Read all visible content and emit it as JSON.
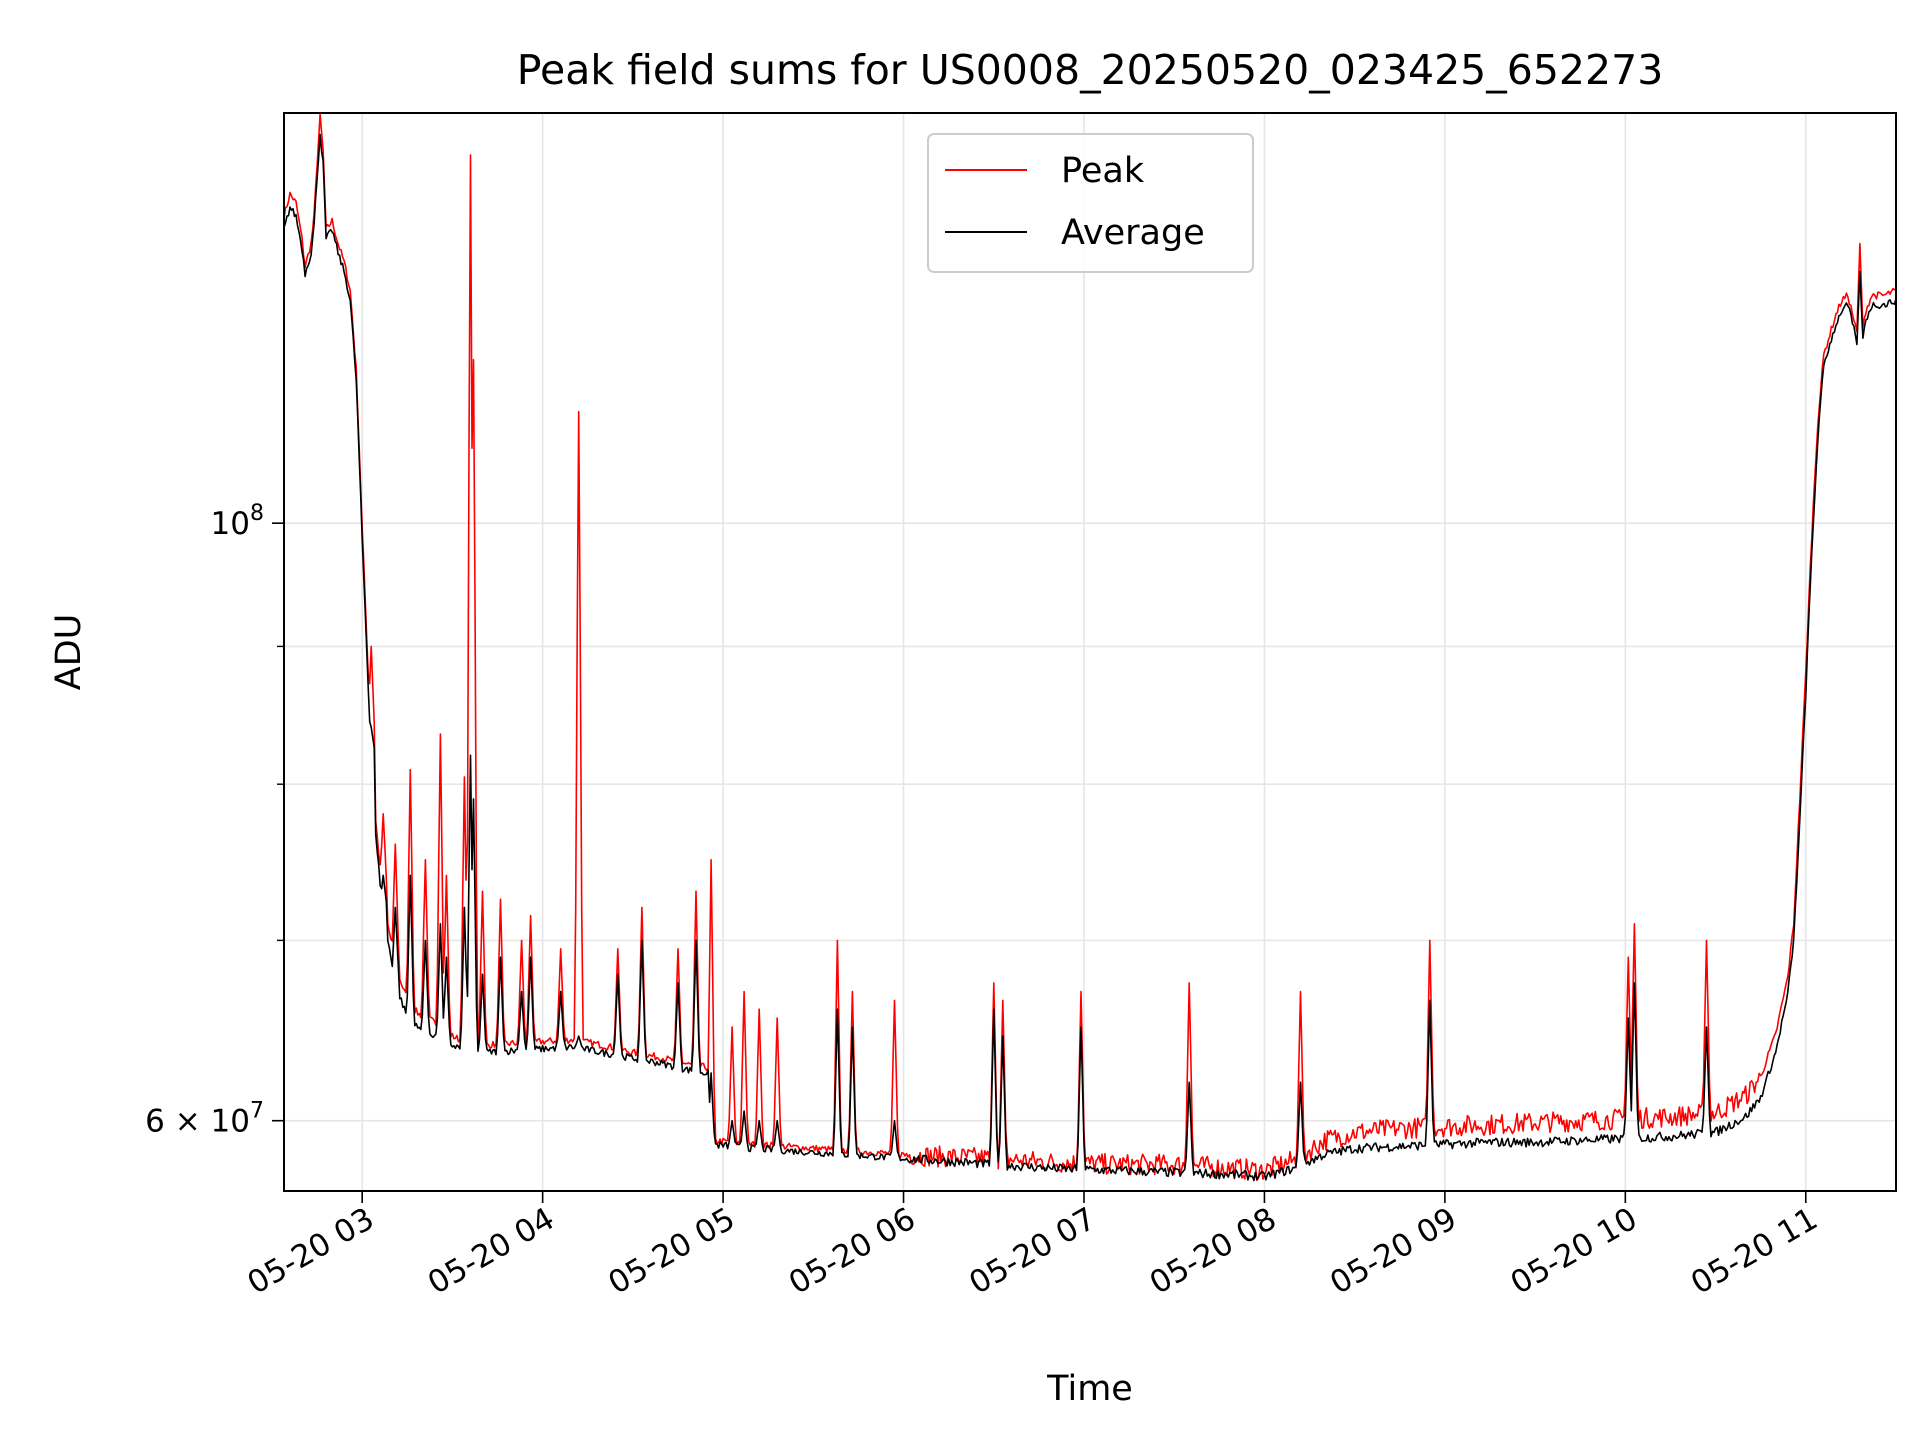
{
  "chart_data": {
    "type": "line",
    "title": "Peak field sums for US0008_20250520_023425_652273",
    "xlabel": "Time",
    "ylabel": "ADU",
    "y_scale": "log",
    "ylim": [
      56500000,
      142000000
    ],
    "xlim": [
      "05-20 02:34",
      "05-20 11:30"
    ],
    "x_ticks": [
      "05-20 03",
      "05-20 04",
      "05-20 05",
      "05-20 06",
      "05-20 07",
      "05-20 08",
      "05-20 09",
      "05-20 10",
      "05-20 11"
    ],
    "y_ticks": [
      {
        "value": 100000000,
        "base": "10",
        "exp": "8"
      },
      {
        "value": 60000000,
        "base": "6 × 10",
        "exp": "7"
      }
    ],
    "grid": true,
    "legend_position": "top-center",
    "colors": {
      "peak": "#ff0000",
      "average": "#000000",
      "grid": "#e6e6e6"
    },
    "series": [
      {
        "name": "Peak",
        "values": [
          [
            "05-20 02:34",
            130000000
          ],
          [
            "05-20 02:36",
            132500000
          ],
          [
            "05-20 02:38",
            131500000
          ],
          [
            "05-20 02:40",
            127500000
          ],
          [
            "05-20 02:41",
            124500000
          ],
          [
            "05-20 02:43",
            127000000
          ],
          [
            "05-20 02:44",
            130000000
          ],
          [
            "05-20 02:45",
            136000000
          ],
          [
            "05-20 02:46",
            141500000
          ],
          [
            "05-20 02:47",
            137500000
          ],
          [
            "05-20 02:48",
            128500000
          ],
          [
            "05-20 02:50",
            129500000
          ],
          [
            "05-20 02:52",
            127000000
          ],
          [
            "05-20 02:54",
            125000000
          ],
          [
            "05-20 02:56",
            122000000
          ],
          [
            "05-20 02:58",
            114000000
          ],
          [
            "05-20 03:00",
            99500000
          ],
          [
            "05-20 03:02",
            88000000
          ],
          [
            "05-20 03:04",
            78500000
          ],
          [
            "05-20 03:06",
            74500000
          ],
          [
            "05-20 03:08",
            71500000
          ],
          [
            "05-20 03:10",
            69500000
          ],
          [
            "05-20 03:12",
            68000000
          ],
          [
            "05-20 03:14",
            67000000
          ],
          [
            "05-20 03:16",
            66200000
          ],
          [
            "05-20 03:19",
            65700000
          ],
          [
            "05-20 03:22",
            65500000
          ],
          [
            "05-20 03:26",
            65000000
          ],
          [
            "05-20 03:30",
            64500000
          ],
          [
            "05-20 03:35",
            64100000
          ],
          [
            "05-20 03:40",
            64000000
          ],
          [
            "05-20 03:50",
            64100000
          ],
          [
            "05-20 04:00",
            64200000
          ],
          [
            "05-20 04:10",
            64300000
          ],
          [
            "05-20 04:20",
            64000000
          ],
          [
            "05-20 04:30",
            63600000
          ],
          [
            "05-20 04:40",
            63300000
          ],
          [
            "05-20 04:50",
            62900000
          ],
          [
            "05-20 04:55",
            62800000
          ],
          [
            "05-20 04:56",
            59000000
          ],
          [
            "05-20 05:10",
            58800000
          ],
          [
            "05-20 05:30",
            58600000
          ],
          [
            "05-20 05:50",
            58400000
          ],
          [
            "05-20 06:10",
            58200000
          ],
          [
            "05-20 06:30",
            58100000
          ],
          [
            "05-20 06:50",
            57900000
          ],
          [
            "05-20 07:10",
            57800000
          ],
          [
            "05-20 07:30",
            57800000
          ],
          [
            "05-20 07:50",
            57600000
          ],
          [
            "05-20 08:00",
            57500000
          ],
          [
            "05-20 08:10",
            58000000
          ],
          [
            "05-20 08:20",
            59000000
          ],
          [
            "05-20 08:30",
            59400000
          ],
          [
            "05-20 08:45",
            59600000
          ],
          [
            "05-20 09:00",
            59700000
          ],
          [
            "05-20 09:15",
            59800000
          ],
          [
            "05-20 09:30",
            59900000
          ],
          [
            "05-20 09:45",
            60000000
          ],
          [
            "05-20 10:00",
            60100000
          ],
          [
            "05-20 10:15",
            60200000
          ],
          [
            "05-20 10:30",
            60400000
          ],
          [
            "05-20 10:40",
            61300000
          ],
          [
            "05-20 10:45",
            62300000
          ],
          [
            "05-20 10:50",
            64600000
          ],
          [
            "05-20 10:54",
            67800000
          ],
          [
            "05-20 10:56",
            71000000
          ],
          [
            "05-20 10:58",
            79000000
          ],
          [
            "05-20 11:00",
            88000000
          ],
          [
            "05-20 11:02",
            99000000
          ],
          [
            "05-20 11:04",
            109000000
          ],
          [
            "05-20 11:06",
            115500000
          ],
          [
            "05-20 11:08",
            117500000
          ],
          [
            "05-20 11:10",
            119500000
          ],
          [
            "05-20 11:12",
            121000000
          ],
          [
            "05-20 11:14",
            121500000
          ],
          [
            "05-20 11:16",
            119000000
          ],
          [
            "05-20 11:18",
            116000000
          ],
          [
            "05-20 11:20",
            120000000
          ],
          [
            "05-20 11:22",
            121500000
          ],
          [
            "05-20 11:24",
            121500000
          ],
          [
            "05-20 11:26",
            121500000
          ],
          [
            "05-20 11:30",
            122000000
          ]
        ]
      },
      {
        "name": "Average",
        "values": [
          [
            "05-20 02:34",
            128500000
          ],
          [
            "05-20 02:36",
            131000000
          ],
          [
            "05-20 02:38",
            130000000
          ],
          [
            "05-20 02:40",
            126500000
          ],
          [
            "05-20 02:41",
            123800000
          ],
          [
            "05-20 02:43",
            126000000
          ],
          [
            "05-20 02:44",
            129000000
          ],
          [
            "05-20 02:45",
            134500000
          ],
          [
            "05-20 02:46",
            139500000
          ],
          [
            "05-20 02:47",
            136000000
          ],
          [
            "05-20 02:48",
            127500000
          ],
          [
            "05-20 02:50",
            128500000
          ],
          [
            "05-20 02:52",
            126000000
          ],
          [
            "05-20 02:54",
            124000000
          ],
          [
            "05-20 02:56",
            121000000
          ],
          [
            "05-20 02:58",
            113000000
          ],
          [
            "05-20 03:00",
            98500000
          ],
          [
            "05-20 03:02",
            87000000
          ],
          [
            "05-20 03:04",
            77500000
          ],
          [
            "05-20 03:06",
            73500000
          ],
          [
            "05-20 03:08",
            70500000
          ],
          [
            "05-20 03:10",
            68500000
          ],
          [
            "05-20 03:12",
            67000000
          ],
          [
            "05-20 03:14",
            66000000
          ],
          [
            "05-20 03:16",
            65300000
          ],
          [
            "05-20 03:19",
            64900000
          ],
          [
            "05-20 03:22",
            64700000
          ],
          [
            "05-20 03:26",
            64400000
          ],
          [
            "05-20 03:30",
            64000000
          ],
          [
            "05-20 03:35",
            63700000
          ],
          [
            "05-20 03:40",
            63600000
          ],
          [
            "05-20 03:50",
            63700000
          ],
          [
            "05-20 04:00",
            63800000
          ],
          [
            "05-20 04:10",
            63900000
          ],
          [
            "05-20 04:20",
            63600000
          ],
          [
            "05-20 04:30",
            63300000
          ],
          [
            "05-20 04:40",
            63000000
          ],
          [
            "05-20 04:50",
            62600000
          ],
          [
            "05-20 04:55",
            62500000
          ],
          [
            "05-20 04:56",
            58800000
          ],
          [
            "05-20 05:10",
            58600000
          ],
          [
            "05-20 05:30",
            58400000
          ],
          [
            "05-20 05:50",
            58200000
          ],
          [
            "05-20 06:10",
            58000000
          ],
          [
            "05-20 06:30",
            57800000
          ],
          [
            "05-20 06:50",
            57600000
          ],
          [
            "05-20 07:10",
            57500000
          ],
          [
            "05-20 07:30",
            57400000
          ],
          [
            "05-20 07:50",
            57300000
          ],
          [
            "05-20 08:00",
            57200000
          ],
          [
            "05-20 08:10",
            57600000
          ],
          [
            "05-20 08:20",
            58300000
          ],
          [
            "05-20 08:30",
            58600000
          ],
          [
            "05-20 08:45",
            58700000
          ],
          [
            "05-20 09:00",
            58800000
          ],
          [
            "05-20 09:15",
            58900000
          ],
          [
            "05-20 09:30",
            58900000
          ],
          [
            "05-20 09:45",
            59000000
          ],
          [
            "05-20 10:00",
            59100000
          ],
          [
            "05-20 10:15",
            59200000
          ],
          [
            "05-20 10:30",
            59400000
          ],
          [
            "05-20 10:40",
            60200000
          ],
          [
            "05-20 10:45",
            61200000
          ],
          [
            "05-20 10:50",
            63600000
          ],
          [
            "05-20 10:54",
            66800000
          ],
          [
            "05-20 10:56",
            70000000
          ],
          [
            "05-20 10:58",
            77500000
          ],
          [
            "05-20 11:00",
            86500000
          ],
          [
            "05-20 11:02",
            97500000
          ],
          [
            "05-20 11:04",
            107500000
          ],
          [
            "05-20 11:06",
            114500000
          ],
          [
            "05-20 11:08",
            116500000
          ],
          [
            "05-20 11:10",
            118500000
          ],
          [
            "05-20 11:12",
            120000000
          ],
          [
            "05-20 11:14",
            120500000
          ],
          [
            "05-20 11:16",
            118000000
          ],
          [
            "05-20 11:18",
            115000000
          ],
          [
            "05-20 11:20",
            119000000
          ],
          [
            "05-20 11:22",
            120500000
          ],
          [
            "05-20 11:24",
            120500000
          ],
          [
            "05-20 11:26",
            120500000
          ],
          [
            "05-20 11:30",
            121000000
          ]
        ]
      }
    ],
    "spikes": [
      {
        "time": "05-20 03:03",
        "peak": 90000000,
        "average": 84000000
      },
      {
        "time": "05-20 03:07",
        "peak": 78000000,
        "average": 74000000
      },
      {
        "time": "05-20 03:11",
        "peak": 76000000,
        "average": 72000000
      },
      {
        "time": "05-20 03:16",
        "peak": 81000000,
        "average": 74000000
      },
      {
        "time": "05-20 03:21",
        "peak": 75000000,
        "average": 70000000
      },
      {
        "time": "05-20 03:26",
        "peak": 83500000,
        "average": 71000000
      },
      {
        "time": "05-20 03:28",
        "peak": 74000000,
        "average": 69000000
      },
      {
        "time": "05-20 03:34",
        "peak": 80500000,
        "average": 72000000
      },
      {
        "time": "05-20 03:36",
        "peak": 137000000,
        "average": 82000000
      },
      {
        "time": "05-20 03:37",
        "peak": 115000000,
        "average": 79000000
      },
      {
        "time": "05-20 03:40",
        "peak": 73000000,
        "average": 68000000
      },
      {
        "time": "05-20 03:46",
        "peak": 72500000,
        "average": 69000000
      },
      {
        "time": "05-20 03:53",
        "peak": 70000000,
        "average": 67000000
      },
      {
        "time": "05-20 04:06",
        "peak": 69500000,
        "average": 67000000
      },
      {
        "time": "05-20 03:56",
        "peak": 71500000,
        "average": 69000000
      },
      {
        "time": "05-20 04:12",
        "peak": 110000000,
        "average": 64500000
      },
      {
        "time": "05-20 04:25",
        "peak": 69500000,
        "average": 68000000
      },
      {
        "time": "05-20 04:33",
        "peak": 72000000,
        "average": 70000000
      },
      {
        "time": "05-20 04:45",
        "peak": 69500000,
        "average": 67500000
      },
      {
        "time": "05-20 04:51",
        "peak": 73000000,
        "average": 70000000
      },
      {
        "time": "05-20 04:56",
        "peak": 75000000,
        "average": 62500000
      },
      {
        "time": "05-20 05:03",
        "peak": 65000000,
        "average": 60000000
      },
      {
        "time": "05-20 05:07",
        "peak": 67000000,
        "average": 60500000
      },
      {
        "time": "05-20 05:12",
        "peak": 66000000,
        "average": 60000000
      },
      {
        "time": "05-20 05:18",
        "peak": 65500000,
        "average": 60000000
      },
      {
        "time": "05-20 05:38",
        "peak": 70000000,
        "average": 66000000
      },
      {
        "time": "05-20 05:43",
        "peak": 67000000,
        "average": 65000000
      },
      {
        "time": "05-20 05:57",
        "peak": 66500000,
        "average": 60000000
      },
      {
        "time": "05-20 06:30",
        "peak": 67500000,
        "average": 66000000
      },
      {
        "time": "05-20 06:33",
        "peak": 66500000,
        "average": 64500000
      },
      {
        "time": "05-20 06:59",
        "peak": 67000000,
        "average": 65000000
      },
      {
        "time": "05-20 07:35",
        "peak": 67500000,
        "average": 62000000
      },
      {
        "time": "05-20 08:12",
        "peak": 67000000,
        "average": 62000000
      },
      {
        "time": "05-20 08:55",
        "peak": 70000000,
        "average": 66500000
      },
      {
        "time": "05-20 10:01",
        "peak": 69000000,
        "average": 65500000
      },
      {
        "time": "05-20 10:03",
        "peak": 71000000,
        "average": 67500000
      },
      {
        "time": "05-20 10:27",
        "peak": 70000000,
        "average": 65000000
      },
      {
        "time": "05-20 11:18",
        "peak": 127000000,
        "average": 124000000
      }
    ]
  },
  "legend": {
    "peak_label": "Peak",
    "average_label": "Average"
  }
}
